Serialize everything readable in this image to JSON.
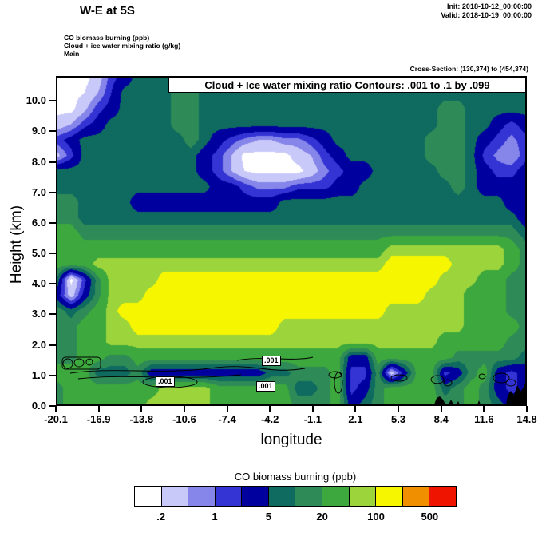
{
  "header": {
    "title": "W-E at 5S",
    "init_label": "Init: 2018-10-12_00:00:00",
    "valid_label": "Valid: 2018-10-19_00:00:00",
    "field_lines": [
      "CO biomass burning  (ppb)",
      "Cloud + ice water mixing ratio  (g/kg)",
      "Main"
    ],
    "cross_section": "Cross-Section: (130,374) to (454,374)"
  },
  "plot": {
    "contour_box_title": "Cloud + Ice water mixing ratio Contours: .001 to .1 by .099",
    "xlabel": "longitude",
    "ylabel": "Height (km)",
    "contour_label": ".001"
  },
  "chart_data": {
    "type": "heatmap",
    "title": "W-E at 5S",
    "xlabel": "longitude",
    "ylabel": "Height (km)",
    "xlim": [
      -20.1,
      14.8
    ],
    "ylim": [
      0,
      10.82
    ],
    "x_tick_labels": [
      "-20.1",
      "-16.9",
      "-13.8",
      "-10.6",
      "-7.4",
      "-4.2",
      "-1.1",
      "2.1",
      "5.3",
      "8.4",
      "11.6",
      "14.8"
    ],
    "y_tick_labels": [
      "0.0",
      "1.0",
      "2.0",
      "3.0",
      "4.0",
      "5.0",
      "6.0",
      "7.0",
      "8.0",
      "9.0",
      "10.0"
    ],
    "fill_field": "CO biomass burning (ppb)",
    "contour_field": "Cloud + Ice water mixing ratio (g/kg)",
    "contour_levels_text": ".001 to .1 by .099",
    "contour_line_label": ".001",
    "terrain_color": "#000000",
    "colorbar": {
      "title": "CO biomass burning  (ppb)",
      "tick_labels": [
        ".2",
        "1",
        "5",
        "20",
        "100",
        "500"
      ],
      "level_bounds_ppb": [
        0.2,
        0.5,
        1,
        2,
        5,
        10,
        20,
        50,
        100,
        200,
        500
      ],
      "colors": [
        "#FFFFFF",
        "#C9C9F9",
        "#8585EA",
        "#3434D4",
        "#00009E",
        "#0F6A60",
        "#2E8B57",
        "#3DA83D",
        "#9CD43C",
        "#F6F600",
        "#F09000",
        "#EE1400"
      ]
    },
    "grid_x_range": [
      -20.1,
      14.8
    ],
    "grid_y_range_km": [
      10.82,
      0
    ],
    "grid_ppb_approx": [
      [
        0.15,
        0.15,
        0.15,
        0.3,
        1.5,
        3,
        7,
        7,
        7,
        15,
        15,
        7,
        7,
        7,
        7,
        7,
        7,
        7,
        7,
        7,
        7,
        7,
        7,
        7,
        7,
        7,
        7,
        7,
        7,
        7,
        7,
        7,
        7,
        7,
        7,
        7
      ],
      [
        0.15,
        0.15,
        0.2,
        0.5,
        2,
        7,
        7,
        7,
        7,
        15,
        15,
        7,
        7,
        7,
        7,
        7,
        7,
        7,
        7,
        7,
        7,
        7,
        7,
        7,
        7,
        7,
        7,
        7,
        7,
        7,
        7,
        7,
        7,
        7,
        7,
        7
      ],
      [
        0.15,
        0.15,
        0.4,
        1.5,
        3,
        7,
        7,
        7,
        7,
        15,
        15,
        7,
        7,
        7,
        7,
        7,
        7,
        7,
        7,
        7,
        7,
        7,
        7,
        7,
        7,
        7,
        7,
        7,
        7,
        15,
        15,
        7,
        7,
        7,
        7,
        7
      ],
      [
        0.3,
        0.5,
        1.5,
        3,
        7,
        7,
        7,
        7,
        7,
        15,
        15,
        7,
        7,
        7,
        7,
        7,
        7,
        7,
        7,
        7,
        7,
        7,
        7,
        7,
        7,
        7,
        7,
        7,
        7,
        15,
        15,
        7,
        7,
        3,
        1.5,
        3
      ],
      [
        1.5,
        3,
        7,
        7,
        7,
        7,
        7,
        7,
        7,
        7,
        15,
        7,
        3,
        1.5,
        0.8,
        0.5,
        0.5,
        0.8,
        0.8,
        1.5,
        3,
        7,
        7,
        7,
        7,
        7,
        7,
        7,
        15,
        15,
        15,
        7,
        3,
        1.5,
        0.8,
        1.5
      ],
      [
        0.4,
        1.5,
        7,
        7,
        7,
        7,
        7,
        7,
        7,
        7,
        7,
        3,
        1.5,
        0.5,
        0.15,
        0.15,
        0.15,
        0.15,
        0.3,
        0.5,
        1.5,
        3,
        7,
        7,
        7,
        7,
        7,
        7,
        15,
        15,
        15,
        7,
        1.5,
        0.8,
        0.5,
        1.5
      ],
      [
        7,
        7,
        7,
        7,
        7,
        7,
        7,
        7,
        7,
        7,
        7,
        3,
        1.5,
        0.5,
        0.2,
        0.15,
        0.15,
        0.15,
        0.15,
        0.3,
        0.8,
        1.5,
        3,
        3,
        7,
        7,
        7,
        7,
        7,
        15,
        15,
        7,
        3,
        1.5,
        1.5,
        3
      ],
      [
        7,
        7,
        7,
        7,
        7,
        7,
        7,
        7,
        7,
        7,
        7,
        7,
        3,
        3,
        1.5,
        0.8,
        0.8,
        0.8,
        1.5,
        1.5,
        1.5,
        3,
        3,
        7,
        7,
        7,
        7,
        7,
        7,
        7,
        15,
        7,
        3,
        3,
        3,
        3
      ],
      [
        15,
        15,
        7,
        7,
        7,
        7,
        3,
        3,
        3,
        3,
        3,
        3,
        3,
        3,
        3,
        3,
        3,
        7,
        7,
        7,
        7,
        7,
        7,
        7,
        7,
        7,
        7,
        7,
        7,
        7,
        7,
        7,
        7,
        7,
        3,
        3
      ],
      [
        15,
        15,
        7,
        7,
        7,
        7,
        7,
        7,
        7,
        7,
        7,
        7,
        7,
        7,
        7,
        7,
        7,
        7,
        7,
        7,
        7,
        7,
        7,
        7,
        7,
        7,
        7,
        7,
        7,
        7,
        7,
        7,
        7,
        7,
        7,
        3
      ],
      [
        30,
        30,
        15,
        15,
        15,
        15,
        15,
        15,
        15,
        15,
        15,
        15,
        15,
        15,
        15,
        15,
        15,
        15,
        15,
        15,
        15,
        15,
        15,
        15,
        15,
        15,
        15,
        15,
        15,
        15,
        15,
        15,
        15,
        15,
        15,
        7
      ],
      [
        30,
        30,
        30,
        30,
        30,
        30,
        30,
        30,
        30,
        30,
        30,
        30,
        30,
        30,
        30,
        30,
        30,
        30,
        30,
        30,
        30,
        30,
        30,
        30,
        30,
        70,
        70,
        70,
        70,
        70,
        70,
        70,
        70,
        70,
        30,
        15
      ],
      [
        30,
        30,
        30,
        70,
        70,
        70,
        70,
        70,
        70,
        70,
        70,
        70,
        70,
        70,
        70,
        70,
        70,
        70,
        70,
        70,
        70,
        70,
        70,
        70,
        70,
        150,
        150,
        150,
        150,
        150,
        70,
        70,
        70,
        70,
        30,
        15
      ],
      [
        7,
        0.15,
        1.5,
        15,
        70,
        70,
        70,
        70,
        150,
        150,
        150,
        150,
        150,
        150,
        150,
        150,
        150,
        150,
        150,
        150,
        150,
        150,
        150,
        150,
        150,
        150,
        150,
        150,
        150,
        70,
        70,
        70,
        30,
        30,
        15,
        15
      ],
      [
        3,
        0.3,
        3,
        15,
        70,
        70,
        70,
        150,
        150,
        150,
        150,
        150,
        150,
        150,
        150,
        150,
        150,
        150,
        150,
        150,
        150,
        150,
        150,
        150,
        150,
        150,
        150,
        150,
        70,
        70,
        70,
        30,
        30,
        30,
        15,
        15
      ],
      [
        15,
        7,
        15,
        30,
        70,
        150,
        150,
        150,
        150,
        150,
        150,
        150,
        150,
        150,
        150,
        150,
        150,
        150,
        150,
        150,
        150,
        150,
        150,
        150,
        150,
        70,
        70,
        70,
        70,
        70,
        70,
        30,
        30,
        30,
        15,
        15
      ],
      [
        15,
        15,
        30,
        30,
        70,
        70,
        150,
        150,
        150,
        150,
        150,
        150,
        150,
        150,
        150,
        150,
        150,
        70,
        70,
        70,
        70,
        70,
        70,
        70,
        70,
        70,
        70,
        70,
        70,
        70,
        70,
        30,
        30,
        30,
        30,
        15
      ],
      [
        15,
        15,
        30,
        30,
        70,
        70,
        70,
        70,
        70,
        70,
        70,
        70,
        70,
        70,
        70,
        70,
        70,
        70,
        70,
        70,
        70,
        70,
        70,
        70,
        70,
        70,
        70,
        70,
        70,
        30,
        30,
        30,
        30,
        30,
        15,
        15
      ],
      [
        15,
        15,
        30,
        30,
        15,
        15,
        30,
        30,
        30,
        30,
        30,
        30,
        30,
        30,
        30,
        30,
        30,
        30,
        30,
        30,
        30,
        30,
        3,
        3,
        30,
        30,
        30,
        30,
        30,
        30,
        15,
        15,
        15,
        15,
        15,
        7
      ],
      [
        30,
        30,
        30,
        7,
        7,
        7,
        15,
        3,
        3,
        3,
        3,
        3,
        3,
        3,
        3,
        3,
        7,
        7,
        15,
        15,
        15,
        30,
        1.5,
        1.5,
        15,
        0.3,
        3,
        30,
        30,
        1.5,
        3,
        15,
        30,
        3,
        1.5,
        3
      ],
      [
        15,
        30,
        30,
        30,
        30,
        30,
        30,
        30,
        70,
        70,
        70,
        70,
        30,
        30,
        30,
        30,
        30,
        30,
        7,
        7,
        15,
        30,
        1.5,
        3,
        15,
        30,
        30,
        30,
        30,
        7,
        15,
        30,
        15,
        3,
        1.5,
        3
      ],
      [
        15,
        30,
        30,
        30,
        30,
        30,
        30,
        70,
        70,
        70,
        70,
        70,
        30,
        30,
        30,
        30,
        30,
        30,
        15,
        15,
        15,
        30,
        3,
        7,
        15,
        30,
        30,
        30,
        30,
        15,
        15,
        30,
        15,
        7,
        3,
        3
      ]
    ]
  }
}
